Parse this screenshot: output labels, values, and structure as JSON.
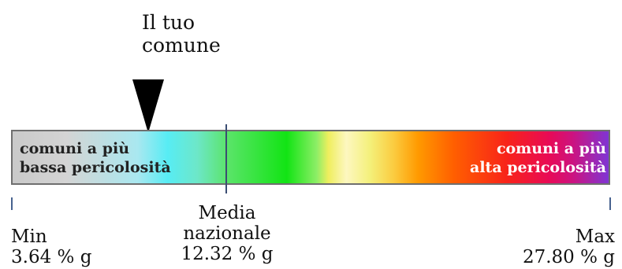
{
  "marker": {
    "label_line1": "Il tuo",
    "label_line2": "comune",
    "color": "#000000"
  },
  "scale": {
    "low_label_line1": "comuni a più",
    "low_label_line2": "bassa pericolosità",
    "high_label_line1": "comuni a più",
    "high_label_line2": "alta pericolosità"
  },
  "min": {
    "label": "Min",
    "value": "3.64 % g"
  },
  "media": {
    "label_line1": "Media",
    "label_line2": "nazionale",
    "value": "12.32 % g"
  },
  "max": {
    "label": "Max",
    "value": "27.80 % g"
  },
  "colors": {
    "low_end": "#c9c9c9",
    "high_end": "#7f35d4",
    "media_line": "#3b4d73"
  }
}
